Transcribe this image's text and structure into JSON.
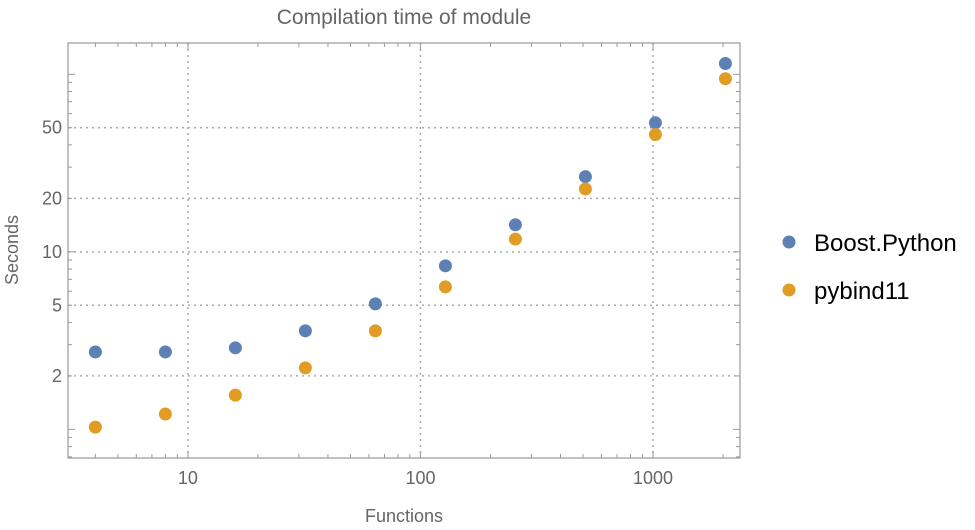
{
  "chart_data": {
    "type": "scatter",
    "title": "Compilation time of module",
    "xlabel": "Functions",
    "ylabel": "Seconds",
    "xscale": "log",
    "yscale": "log",
    "xlim": [
      3.05,
      2366
    ],
    "ylim": [
      0.69,
      150
    ],
    "xticks": [
      {
        "value": 10,
        "label": "10"
      },
      {
        "value": 100,
        "label": "100"
      },
      {
        "value": 1000,
        "label": "1000"
      }
    ],
    "yticks": [
      {
        "value": 2,
        "label": "2"
      },
      {
        "value": 5,
        "label": "5"
      },
      {
        "value": 10,
        "label": "10"
      },
      {
        "value": 20,
        "label": "20"
      },
      {
        "value": 50,
        "label": "50"
      }
    ],
    "grid": true,
    "legend_position": "right",
    "series": [
      {
        "name": "Boost.Python",
        "color": "#5e81b5",
        "x": [
          4,
          8,
          16,
          32,
          64,
          128,
          256,
          512,
          1024,
          2048
        ],
        "y": [
          2.73,
          2.73,
          2.88,
          3.59,
          5.09,
          8.34,
          14.2,
          26.5,
          53.3,
          115
        ]
      },
      {
        "name": "pybind11",
        "color": "#e19c24",
        "x": [
          4,
          8,
          16,
          32,
          64,
          128,
          256,
          512,
          1024,
          2048
        ],
        "y": [
          1.03,
          1.22,
          1.56,
          2.22,
          3.59,
          6.35,
          11.8,
          22.6,
          45.8,
          94.4
        ]
      }
    ]
  }
}
